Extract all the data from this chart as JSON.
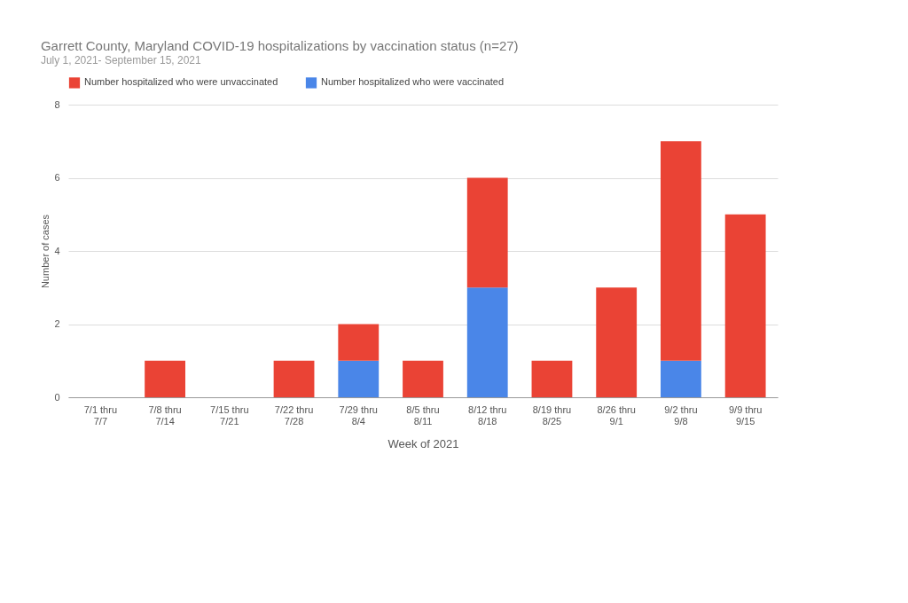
{
  "chart_data": {
    "type": "bar",
    "title": "Garrett County, Maryland COVID-19 hospitalizations by vaccination status  (n=27)",
    "subtitle": "July 1, 2021- September 15, 2021",
    "xlabel": "Week of 2021",
    "ylabel": "Number of cases",
    "categories": [
      "7/1 thru\n7/7",
      "7/8 thru\n7/14",
      "7/15 thru\n7/21",
      "7/22 thru\n7/28",
      "7/29 thru\n8/4",
      "8/5  thru\n8/11",
      "8/12  thru\n8/18",
      "8/19 thru\n8/25",
      "8/26  thru\n9/1",
      "9/2  thru\n9/8",
      "9/9  thru\n9/15"
    ],
    "series": [
      {
        "name": "Number hospitalized who were vaccinated",
        "color": "#4a86e8",
        "values": [
          0,
          0,
          0,
          0,
          1,
          0,
          3,
          0,
          0,
          1,
          0
        ]
      },
      {
        "name": "Number hospitalized who were unvaccinated",
        "color": "#ea4335",
        "values": [
          0,
          1,
          0,
          1,
          1,
          1,
          3,
          1,
          3,
          6,
          5
        ]
      }
    ],
    "stacked": true,
    "ylim": [
      0,
      8
    ],
    "yticks": [
      0,
      2,
      4,
      6,
      8
    ],
    "grid": "y",
    "legend": "top"
  }
}
